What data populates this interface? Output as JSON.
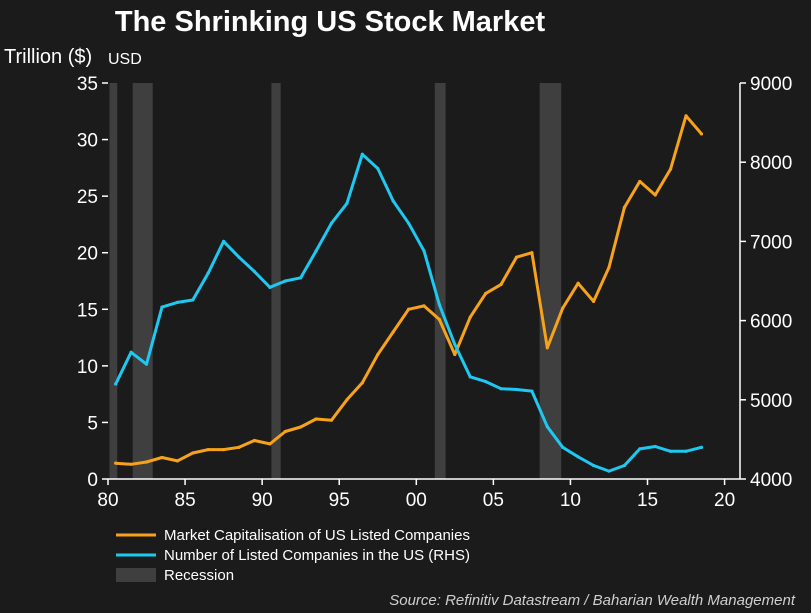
{
  "chart_data": {
    "type": "line",
    "title": "The Shrinking US Stock Market",
    "ylabel_left": "Trillion ($)",
    "ylabel_left_unit": "USD",
    "ylim_left": [
      0,
      35
    ],
    "ylim_right": [
      4000,
      9000
    ],
    "xlim": [
      80,
      121
    ],
    "x_tick_values": [
      80,
      85,
      90,
      95,
      100,
      105,
      110,
      115,
      120
    ],
    "x_tick_labels": [
      "80",
      "85",
      "90",
      "95",
      "00",
      "05",
      "10",
      "15",
      "20"
    ],
    "y_left_ticks": [
      0,
      5,
      10,
      15,
      20,
      25,
      30,
      35
    ],
    "y_right_ticks": [
      4000,
      5000,
      6000,
      7000,
      8000,
      9000
    ],
    "grid": false,
    "legend_position": "bottom-left",
    "series": [
      {
        "name": "Market Capitalisation of US Listed Companies",
        "axis": "left",
        "color": "#f7a21b",
        "x": [
          80.5,
          81.5,
          82.5,
          83.5,
          84.5,
          85.5,
          86.5,
          87.5,
          88.5,
          89.5,
          90.5,
          91.5,
          92.5,
          93.5,
          94.5,
          95.5,
          96.5,
          97.5,
          98.5,
          99.5,
          100.5,
          101.5,
          102.5,
          103.5,
          104.5,
          105.5,
          106.5,
          107.5,
          108.5,
          109.5,
          110.5,
          111.5,
          112.5,
          113.5,
          114.5,
          115.5,
          116.5,
          117.5,
          118.5
        ],
        "y": [
          1.4,
          1.3,
          1.5,
          1.9,
          1.6,
          2.3,
          2.6,
          2.6,
          2.8,
          3.4,
          3.1,
          4.2,
          4.6,
          5.3,
          5.2,
          7.0,
          8.5,
          11.0,
          13.0,
          15.0,
          15.3,
          14.1,
          11.0,
          14.3,
          16.4,
          17.2,
          19.6,
          20.0,
          11.6,
          15.1,
          17.3,
          15.7,
          18.7,
          24.0,
          26.3,
          25.1,
          27.4,
          32.1,
          30.5
        ]
      },
      {
        "name": "Number of Listed Companies in the US (RHS)",
        "axis": "right",
        "color": "#1ec8f0",
        "x": [
          80.5,
          81.5,
          82.5,
          83.5,
          84.5,
          85.5,
          86.5,
          87.5,
          88.5,
          89.5,
          90.5,
          91.5,
          92.5,
          93.5,
          94.5,
          95.5,
          96.5,
          97.5,
          98.5,
          99.5,
          100.5,
          101.5,
          102.5,
          103.5,
          104.5,
          105.5,
          106.5,
          107.5,
          108.5,
          109.5,
          110.5,
          111.5,
          112.5,
          113.5,
          114.5,
          115.5,
          116.5,
          117.5,
          118.5
        ],
        "y": [
          5200,
          5600,
          5450,
          6170,
          6230,
          6260,
          6600,
          7000,
          6800,
          6620,
          6420,
          6500,
          6540,
          6880,
          7230,
          7480,
          8100,
          7920,
          7510,
          7230,
          6880,
          6200,
          5700,
          5290,
          5230,
          5140,
          5130,
          5110,
          4660,
          4400,
          4280,
          4170,
          4100,
          4170,
          4380,
          4410,
          4350,
          4350,
          4400
        ]
      }
    ],
    "recessions": [
      {
        "start": 80.1,
        "end": 80.6
      },
      {
        "start": 81.6,
        "end": 82.9
      },
      {
        "start": 90.6,
        "end": 91.2
      },
      {
        "start": 101.2,
        "end": 101.9
      },
      {
        "start": 108.0,
        "end": 109.4
      }
    ],
    "recession_color": "#3f3f3f",
    "legend": [
      {
        "label": "Market Capitalisation of US Listed Companies",
        "color": "#f7a21b",
        "kind": "line"
      },
      {
        "label": "Number of Listed Companies in the US (RHS)",
        "color": "#1ec8f0",
        "kind": "line"
      },
      {
        "label": "Recession",
        "color": "#3f3f3f",
        "kind": "box"
      }
    ],
    "source": "Source: Refinitiv Datastream / Baharian Wealth Management"
  }
}
